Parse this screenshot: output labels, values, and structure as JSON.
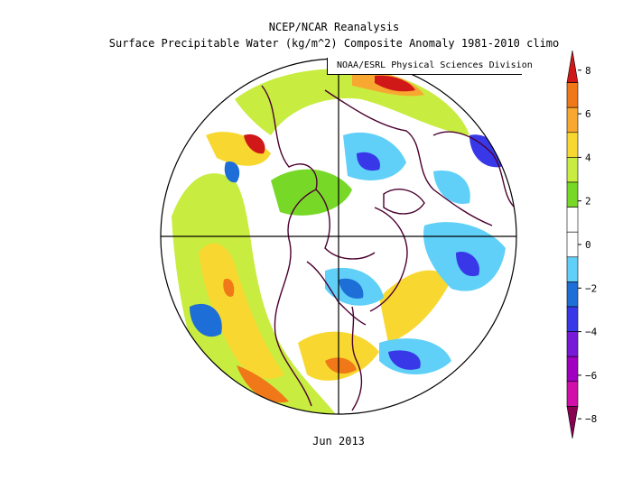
{
  "title_line1": "NCEP/NCAR Reanalysis",
  "title_line2": "Surface Precipitable Water (kg/m^2) Composite Anomaly 1981-2010 climo",
  "credit": "NOAA/ESRL Physical Sciences Division",
  "date_label": "Jun 2013",
  "colorbar": {
    "min": -8,
    "max": 8,
    "tick_labels": [
      "8",
      "6",
      "4",
      "2",
      "0",
      "−2",
      "−4",
      "−6",
      "−8"
    ],
    "colors": [
      "#d01818",
      "#f07818",
      "#f8a830",
      "#f8d830",
      "#c8ec40",
      "#78d828",
      "#ffffff",
      "#ffffff",
      "#60d0f8",
      "#1e6ed8",
      "#3838e8",
      "#7818d8",
      "#a000c0",
      "#d010a8",
      "#880050"
    ]
  },
  "map": {
    "projection": "north-polar-stereographic",
    "ocean_fill": "#ffffff",
    "land_outline_color": "#4a0030",
    "graticule_color": "#000000"
  }
}
